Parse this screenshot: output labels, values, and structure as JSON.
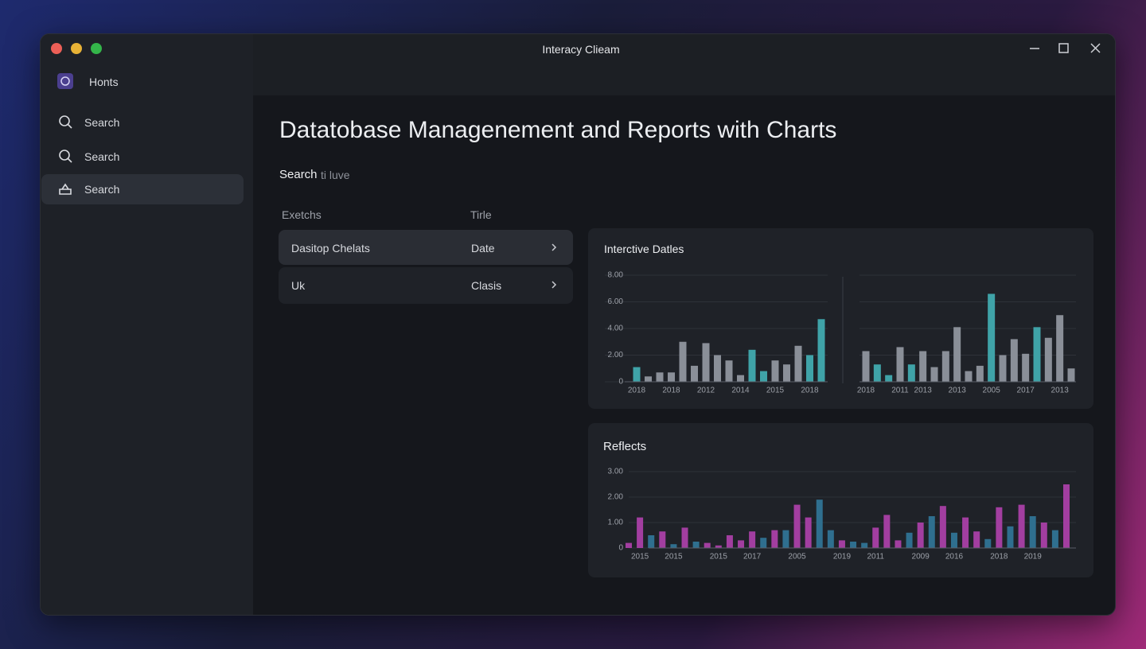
{
  "window": {
    "title": "Interacy Clieam"
  },
  "sidebar": {
    "items": [
      "Honts",
      "Search",
      "Search",
      "Search"
    ]
  },
  "main": {
    "title": "Datatobase Managenement and Reports with Charts",
    "search_label": "Search",
    "search_hint": "ti luve",
    "table": {
      "headers": [
        "Exetchs",
        "Tirle"
      ],
      "rows": [
        [
          "Dasitop Chelats",
          "Date"
        ],
        [
          "Uk",
          "Clasis"
        ]
      ]
    }
  },
  "chart_data": [
    {
      "type": "bar",
      "title": "Interctive Datles",
      "categories": [
        "2018",
        null,
        null,
        "2018",
        null,
        null,
        "2012",
        null,
        null,
        "2014",
        null,
        null,
        "2015",
        null,
        null,
        "2018",
        null
      ],
      "values": [
        1.1,
        0.4,
        0.7,
        0.7,
        3.0,
        1.2,
        2.9,
        2.0,
        1.6,
        0.5,
        2.4,
        0.8,
        1.6,
        1.3,
        2.7,
        2.0,
        4.7
      ],
      "colors": [
        "#3fa3a8",
        "#8a8f98",
        "#8a8f98",
        "#8a8f98",
        "#8a8f98",
        "#8a8f98",
        "#8a8f98",
        "#8a8f98",
        "#8a8f98",
        "#8a8f98",
        "#3fa3a8",
        "#3fa3a8",
        "#8a8f98",
        "#8a8f98",
        "#8a8f98",
        "#3fa3a8",
        "#3fa3a8"
      ],
      "ylim": [
        0,
        8
      ],
      "yticks": [
        0,
        {
          "value": 2,
          "label": "2.00"
        },
        {
          "value": 4,
          "label": "4.00"
        },
        {
          "value": 6,
          "label": "6.00"
        },
        {
          "value": 8,
          "label": "8.00"
        }
      ],
      "grid": true
    },
    {
      "type": "bar",
      "categories": [
        "2018",
        null,
        null,
        "2011",
        null,
        "2013",
        null,
        null,
        "2013",
        null,
        null,
        "2005",
        null,
        null,
        "2017",
        null,
        null,
        "2013",
        null
      ],
      "values": [
        2.3,
        1.3,
        0.5,
        2.6,
        1.3,
        2.3,
        1.1,
        2.3,
        4.1,
        0.8,
        1.2,
        6.6,
        2.0,
        3.2,
        2.1,
        4.1,
        3.3,
        5.0,
        1.0
      ],
      "colors": [
        "#8a8f98",
        "#3fa3a8",
        "#3fa3a8",
        "#8a8f98",
        "#3fa3a8",
        "#8a8f98",
        "#8a8f98",
        "#8a8f98",
        "#8a8f98",
        "#8a8f98",
        "#8a8f98",
        "#3fa3a8",
        "#8a8f98",
        "#8a8f98",
        "#8a8f98",
        "#3fa3a8",
        "#8a8f98",
        "#8a8f98",
        "#8a8f98"
      ],
      "ylim": [
        0,
        8
      ],
      "yticks": [
        0,
        2,
        4,
        6,
        8
      ],
      "grid": true
    },
    {
      "type": "bar",
      "title": "Reflects",
      "categories": [
        null,
        "2015",
        null,
        null,
        "2015",
        null,
        null,
        null,
        "2015",
        null,
        null,
        "2017",
        null,
        null,
        null,
        "2005",
        null,
        null,
        null,
        "2019",
        null,
        null,
        "2011",
        null,
        null,
        null,
        "2009",
        null,
        null,
        "2016",
        null,
        null,
        null,
        "2018",
        null,
        null,
        "2019",
        null,
        null,
        null
      ],
      "values": [
        0.2,
        1.2,
        0.5,
        0.65,
        0.15,
        0.8,
        0.25,
        0.2,
        0.1,
        0.5,
        0.3,
        0.65,
        0.4,
        0.7,
        0.7,
        1.7,
        1.2,
        1.9,
        0.7,
        0.3,
        0.25,
        0.2,
        0.8,
        1.3,
        0.3,
        0.6,
        1.0,
        1.25,
        1.65,
        0.6,
        1.2,
        0.65,
        0.35,
        1.6,
        0.85,
        1.7,
        1.25,
        1.0,
        0.7,
        2.5
      ],
      "colors": [
        "#a23ea0",
        "#a23ea0",
        "#2f6f8f",
        "#a23ea0",
        "#2f6f8f",
        "#a23ea0",
        "#2f6f8f",
        "#a23ea0",
        "#a23ea0",
        "#a23ea0",
        "#a23ea0",
        "#a23ea0",
        "#2f6f8f",
        "#a23ea0",
        "#2f6f8f",
        "#a23ea0",
        "#a23ea0",
        "#2f6f8f",
        "#2f6f8f",
        "#a23ea0",
        "#2f6f8f",
        "#2f6f8f",
        "#a23ea0",
        "#a23ea0",
        "#a23ea0",
        "#2f6f8f",
        "#a23ea0",
        "#2f6f8f",
        "#a23ea0",
        "#2f6f8f",
        "#a23ea0",
        "#a23ea0",
        "#2f6f8f",
        "#a23ea0",
        "#2f6f8f",
        "#a23ea0",
        "#2f6f8f",
        "#a23ea0",
        "#2f6f8f",
        "#a23ea0"
      ],
      "ylim": [
        0,
        3
      ],
      "yticks": [
        0,
        {
          "value": 1,
          "label": "1.00"
        },
        {
          "value": 2,
          "label": "2.00"
        },
        {
          "value": 3,
          "label": "3.00"
        }
      ],
      "grid": true
    }
  ]
}
